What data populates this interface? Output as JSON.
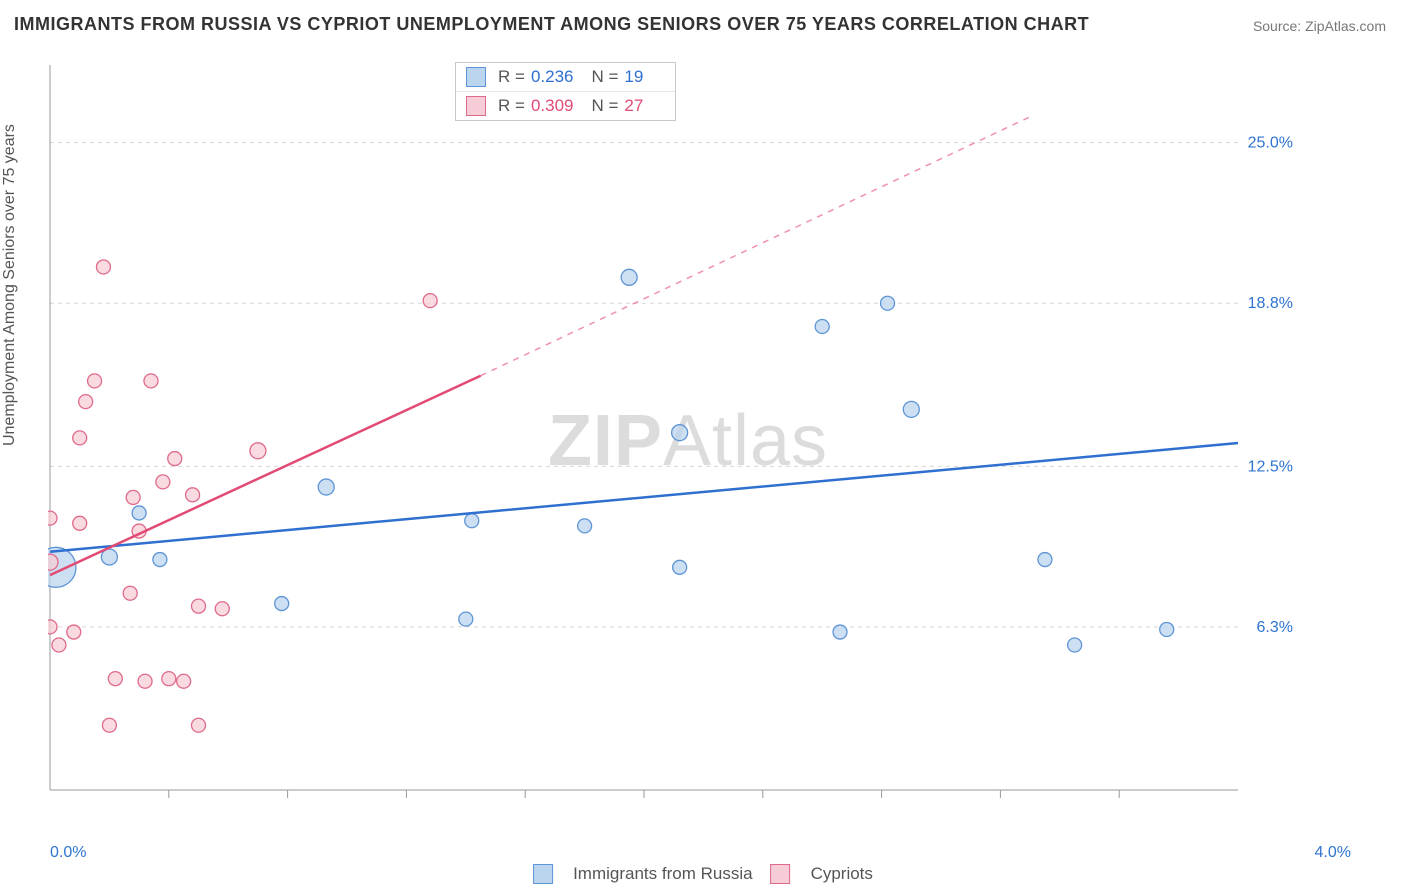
{
  "title": "IMMIGRANTS FROM RUSSIA VS CYPRIOT UNEMPLOYMENT AMONG SENIORS OVER 75 YEARS CORRELATION CHART",
  "source": "Source: ZipAtlas.com",
  "ylabel": "Unemployment Among Seniors over 75 years",
  "watermark_a": "ZIP",
  "watermark_b": "Atlas",
  "chart": {
    "type": "scatter-correlation",
    "xlim": [
      0.0,
      4.0
    ],
    "ylim": [
      0.0,
      28.0
    ],
    "x_ticks_minor": [
      0.4,
      0.8,
      1.2,
      1.6,
      2.0,
      2.4,
      2.8,
      3.2,
      3.6
    ],
    "y_gridlines": [
      6.3,
      12.5,
      18.8,
      25.0
    ],
    "y_tick_labels": [
      "6.3%",
      "12.5%",
      "18.8%",
      "25.0%"
    ],
    "x_min_label": "0.0%",
    "x_max_label": "4.0%",
    "grid_color": "#d6d6d6",
    "axis_color": "#999999",
    "background": "#ffffff",
    "tick_label_color": "#2f74d0",
    "xaxis_label_color": "#2f74d0",
    "series": [
      {
        "key": "russia",
        "label": "Immigrants from Russia",
        "fill": "#bcd5ef",
        "stroke": "#5e95d6",
        "line_color": "#2f6fd0",
        "r_value": "0.236",
        "n_value": "19",
        "regression": {
          "x1": 0.0,
          "y1": 9.2,
          "x2": 4.0,
          "y2": 13.4,
          "dash_from_x": 4.0
        },
        "points": [
          {
            "x": 0.02,
            "y": 8.6,
            "r": 20
          },
          {
            "x": 0.2,
            "y": 9.0,
            "r": 8
          },
          {
            "x": 0.37,
            "y": 8.9,
            "r": 7
          },
          {
            "x": 0.3,
            "y": 10.7,
            "r": 7
          },
          {
            "x": 0.78,
            "y": 7.2,
            "r": 7
          },
          {
            "x": 0.93,
            "y": 11.7,
            "r": 8
          },
          {
            "x": 1.42,
            "y": 10.4,
            "r": 7
          },
          {
            "x": 1.4,
            "y": 6.6,
            "r": 7
          },
          {
            "x": 1.8,
            "y": 10.2,
            "r": 7
          },
          {
            "x": 1.95,
            "y": 19.8,
            "r": 8
          },
          {
            "x": 2.12,
            "y": 13.8,
            "r": 8
          },
          {
            "x": 2.12,
            "y": 8.6,
            "r": 7
          },
          {
            "x": 2.6,
            "y": 17.9,
            "r": 7
          },
          {
            "x": 2.82,
            "y": 18.8,
            "r": 7
          },
          {
            "x": 2.9,
            "y": 14.7,
            "r": 8
          },
          {
            "x": 2.66,
            "y": 6.1,
            "r": 7
          },
          {
            "x": 3.35,
            "y": 8.9,
            "r": 7
          },
          {
            "x": 3.45,
            "y": 5.6,
            "r": 7
          },
          {
            "x": 3.76,
            "y": 6.2,
            "r": 7
          }
        ]
      },
      {
        "key": "cypriots",
        "label": "Cypriots",
        "fill": "#f6cdd6",
        "stroke": "#e06a8a",
        "line_color": "#e24a74",
        "r_value": "0.309",
        "n_value": "27",
        "regression": {
          "x1": 0.0,
          "y1": 8.3,
          "x2": 1.45,
          "y2": 16.0,
          "dash_from_x": 1.45,
          "dash_x2": 3.3,
          "dash_y2": 26.0
        },
        "points": [
          {
            "x": 0.0,
            "y": 6.3,
            "r": 7
          },
          {
            "x": 0.0,
            "y": 10.5,
            "r": 7
          },
          {
            "x": 0.0,
            "y": 8.8,
            "r": 8
          },
          {
            "x": 0.03,
            "y": 5.6,
            "r": 7
          },
          {
            "x": 0.08,
            "y": 6.1,
            "r": 7
          },
          {
            "x": 0.1,
            "y": 10.3,
            "r": 7
          },
          {
            "x": 0.1,
            "y": 13.6,
            "r": 7
          },
          {
            "x": 0.12,
            "y": 15.0,
            "r": 7
          },
          {
            "x": 0.15,
            "y": 15.8,
            "r": 7
          },
          {
            "x": 0.18,
            "y": 20.2,
            "r": 7
          },
          {
            "x": 0.2,
            "y": 2.5,
            "r": 7
          },
          {
            "x": 0.22,
            "y": 4.3,
            "r": 7
          },
          {
            "x": 0.27,
            "y": 7.6,
            "r": 7
          },
          {
            "x": 0.28,
            "y": 11.3,
            "r": 7
          },
          {
            "x": 0.3,
            "y": 10.0,
            "r": 7
          },
          {
            "x": 0.32,
            "y": 4.2,
            "r": 7
          },
          {
            "x": 0.34,
            "y": 15.8,
            "r": 7
          },
          {
            "x": 0.38,
            "y": 11.9,
            "r": 7
          },
          {
            "x": 0.4,
            "y": 4.3,
            "r": 7
          },
          {
            "x": 0.42,
            "y": 12.8,
            "r": 7
          },
          {
            "x": 0.45,
            "y": 4.2,
            "r": 7
          },
          {
            "x": 0.48,
            "y": 11.4,
            "r": 7
          },
          {
            "x": 0.5,
            "y": 2.5,
            "r": 7
          },
          {
            "x": 0.5,
            "y": 7.1,
            "r": 7
          },
          {
            "x": 0.58,
            "y": 7.0,
            "r": 7
          },
          {
            "x": 0.7,
            "y": 13.1,
            "r": 8
          },
          {
            "x": 1.28,
            "y": 18.9,
            "r": 7
          }
        ]
      }
    ]
  },
  "legend_top": {
    "r_label": "R =",
    "n_label": "N ="
  },
  "legend_bottom": {
    "items": [
      "Immigrants from Russia",
      "Cypriots"
    ]
  }
}
